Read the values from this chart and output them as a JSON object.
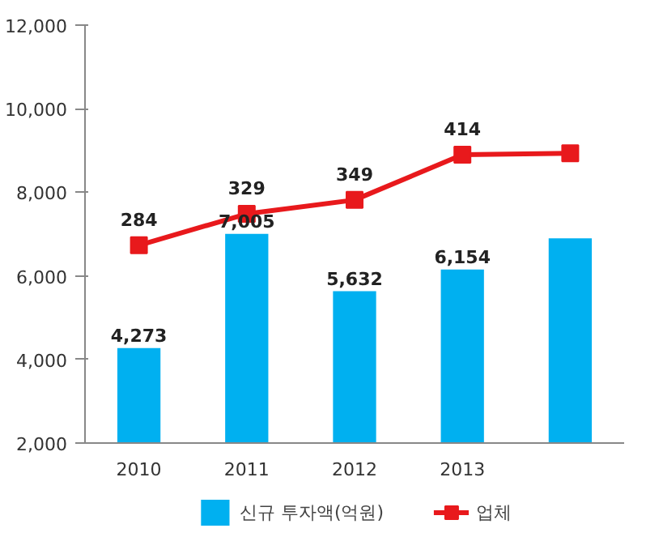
{
  "chart_data": {
    "type": "bar",
    "categories": [
      "2010",
      "2011",
      "2012",
      "2013",
      null
    ],
    "ylim": [
      2000,
      12000
    ],
    "yticks": [
      {
        "value": 2000,
        "label": "2,000"
      },
      {
        "value": 4000,
        "label": "4,000"
      },
      {
        "value": 6000,
        "label": "6,000"
      },
      {
        "value": 8000,
        "label": "8,000"
      },
      {
        "value": 10000,
        "label": "10,000"
      },
      {
        "value": 12000,
        "label": "12,000"
      }
    ],
    "y2lim": [
      0,
      600
    ],
    "series": [
      {
        "name": "신규 투자액(억원)",
        "color": "#00b0f0",
        "values": [
          4273,
          7005,
          5632,
          6154,
          6900
        ],
        "value_labels": [
          "4,273",
          "7,005",
          "5,632",
          "6,154",
          null
        ]
      },
      {
        "name": "업체",
        "type": "line",
        "axis": "y2",
        "color": "#e8191c",
        "marker": "square",
        "values": [
          284,
          329,
          349,
          414,
          416
        ],
        "value_labels": [
          "284",
          "329",
          "349",
          "414",
          null
        ]
      }
    ],
    "grid": false,
    "legend": "bottom"
  }
}
